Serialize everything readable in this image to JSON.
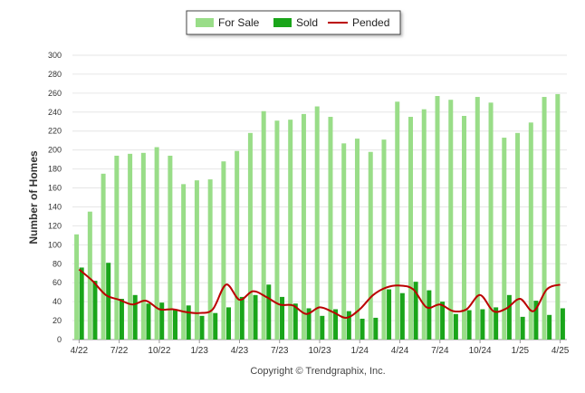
{
  "chart_data": {
    "type": "bar",
    "ylabel": "Number of Homes",
    "xlabel": "",
    "ylim": [
      0,
      300
    ],
    "yticks": [
      "0",
      "20",
      "40",
      "60",
      "80",
      "100",
      "120",
      "140",
      "160",
      "180",
      "200",
      "220",
      "240",
      "260",
      "280",
      "300"
    ],
    "grid": true,
    "legend_position": "top-center",
    "x_tick_labels": [
      "4/22",
      "7/22",
      "10/22",
      "1/23",
      "4/23",
      "7/23",
      "10/23",
      "1/24",
      "4/24",
      "7/24",
      "10/24",
      "1/25",
      "4/25"
    ],
    "categories": [
      "4/22",
      "5/22",
      "6/22",
      "7/22",
      "8/22",
      "9/22",
      "10/22",
      "11/22",
      "12/22",
      "1/23",
      "2/23",
      "3/23",
      "4/23",
      "5/23",
      "6/23",
      "7/23",
      "8/23",
      "9/23",
      "10/23",
      "11/23",
      "12/23",
      "1/24",
      "2/24",
      "3/24",
      "4/24",
      "5/24",
      "6/24",
      "7/24",
      "8/24",
      "9/24",
      "10/24",
      "11/24",
      "12/24",
      "1/25",
      "2/25",
      "3/25",
      "4/25"
    ],
    "series": [
      {
        "name": "For Sale",
        "type": "bar",
        "color": "#99dd88",
        "values": [
          111,
          135,
          175,
          194,
          196,
          197,
          203,
          194,
          164,
          168,
          169,
          188,
          199,
          218,
          241,
          231,
          232,
          238,
          246,
          235,
          207,
          212,
          198,
          211,
          251,
          235,
          243,
          257,
          253,
          236,
          256,
          250,
          213,
          218,
          229,
          256,
          259
        ]
      },
      {
        "name": "Sold",
        "type": "bar",
        "color": "#1aa51a",
        "values": [
          76,
          62,
          81,
          43,
          47,
          38,
          39,
          31,
          36,
          25,
          28,
          34,
          45,
          47,
          58,
          45,
          38,
          33,
          25,
          32,
          30,
          22,
          23,
          53,
          49,
          61,
          52,
          40,
          27,
          31,
          32,
          34,
          47,
          24,
          41,
          26,
          33
        ]
      },
      {
        "name": "Pended",
        "type": "line",
        "color": "#bb0000",
        "values": [
          74,
          62,
          47,
          42,
          37,
          41,
          32,
          32,
          29,
          28,
          32,
          58,
          42,
          51,
          45,
          37,
          36,
          27,
          34,
          29,
          23,
          32,
          47,
          55,
          57,
          53,
          34,
          37,
          30,
          32,
          47,
          30,
          33,
          43,
          30,
          53,
          58
        ]
      }
    ]
  },
  "footer": {
    "copyright": "Copyright © Trendgraphix, Inc."
  }
}
